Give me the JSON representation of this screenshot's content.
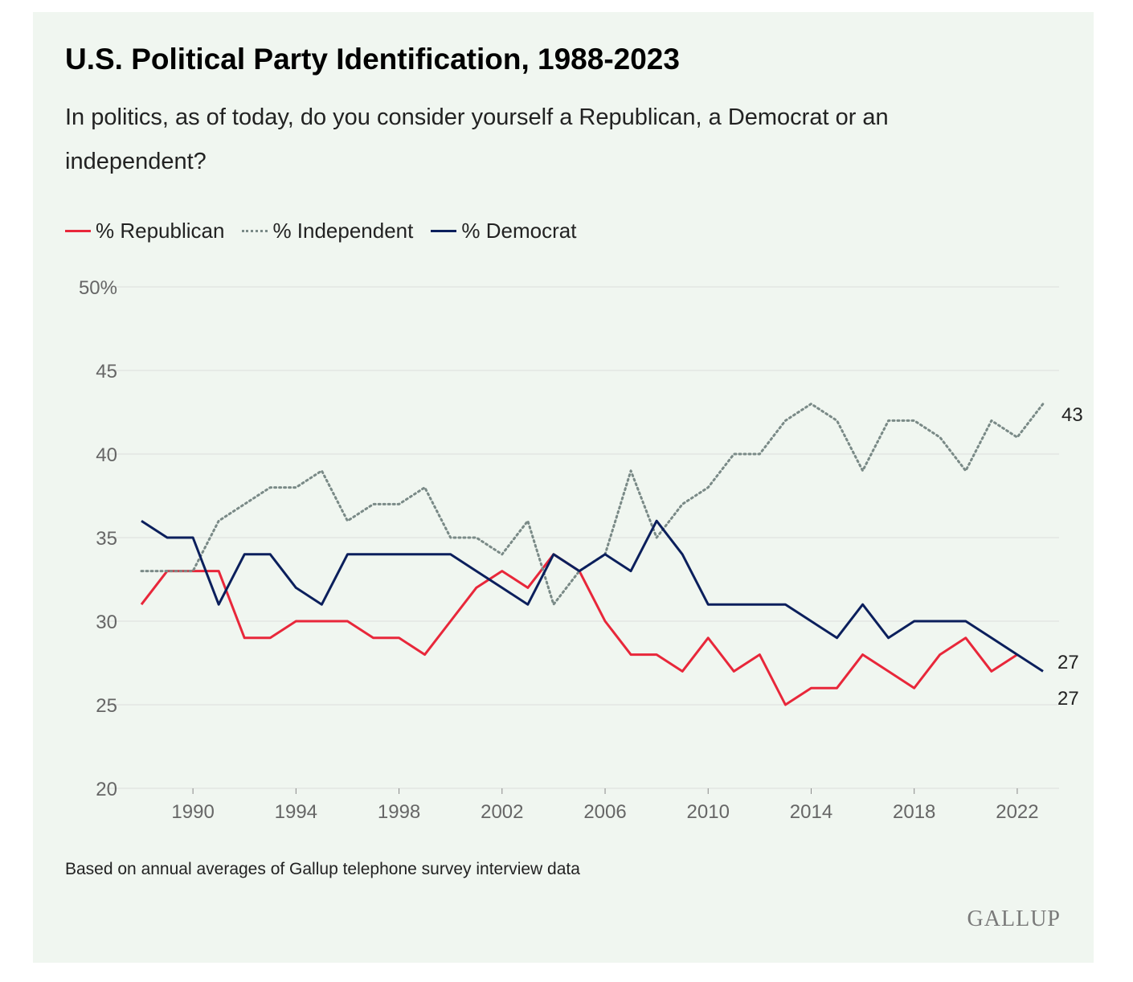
{
  "title": "U.S. Political Party Identification, 1988-2023",
  "subtitle": "In politics, as of today, do you consider yourself a Republican, a Democrat or an independent?",
  "footnote": "Based on annual averages of Gallup telephone survey interview data",
  "logo": "GALLUP",
  "colors": {
    "republican": "#e8273a",
    "independent": "#7a8a87",
    "democrat": "#0b1f5c",
    "background": "#f0f6f0",
    "grid": "#dcdfdc"
  },
  "chart_data": {
    "type": "line",
    "title": "U.S. Political Party Identification, 1988-2023",
    "xlabel": "",
    "ylabel": "",
    "xlim": [
      1988,
      2023
    ],
    "ylim": [
      20,
      50
    ],
    "yticks": [
      20,
      25,
      30,
      35,
      40,
      45,
      50
    ],
    "ytick_labels": [
      "20",
      "25",
      "30",
      "35",
      "40",
      "45",
      "50%"
    ],
    "xticks": [
      1990,
      1994,
      1998,
      2002,
      2006,
      2010,
      2014,
      2018,
      2022
    ],
    "grid": true,
    "legend_position": "top-left",
    "x": [
      1988,
      1989,
      1990,
      1991,
      1992,
      1993,
      1994,
      1995,
      1996,
      1997,
      1998,
      1999,
      2000,
      2001,
      2002,
      2003,
      2004,
      2005,
      2006,
      2007,
      2008,
      2009,
      2010,
      2011,
      2012,
      2013,
      2014,
      2015,
      2016,
      2017,
      2018,
      2019,
      2020,
      2021,
      2022,
      2023
    ],
    "series": [
      {
        "name": "% Republican",
        "color": "#e8273a",
        "style": "solid",
        "values": [
          31,
          33,
          33,
          33,
          29,
          29,
          30,
          30,
          30,
          29,
          29,
          28,
          30,
          32,
          33,
          32,
          34,
          33,
          30,
          28,
          28,
          27,
          29,
          27,
          28,
          25,
          26,
          26,
          28,
          27,
          26,
          28,
          29,
          27,
          28,
          null
        ],
        "end_label": "27"
      },
      {
        "name": "% Independent",
        "color": "#7a8a87",
        "style": "dotted",
        "values": [
          33,
          33,
          33,
          36,
          37,
          38,
          38,
          39,
          36,
          37,
          37,
          38,
          35,
          35,
          34,
          36,
          31,
          33,
          34,
          39,
          35,
          37,
          38,
          40,
          40,
          42,
          43,
          42,
          39,
          42,
          42,
          41,
          39,
          42,
          41,
          43
        ],
        "end_label": "43"
      },
      {
        "name": "% Democrat",
        "color": "#0b1f5c",
        "style": "solid",
        "values": [
          36,
          35,
          35,
          31,
          34,
          34,
          32,
          31,
          34,
          34,
          34,
          34,
          34,
          33,
          32,
          31,
          34,
          33,
          34,
          33,
          36,
          34,
          31,
          31,
          31,
          31,
          30,
          29,
          31,
          29,
          30,
          30,
          30,
          29,
          28,
          27
        ],
        "end_label": "27"
      }
    ]
  }
}
